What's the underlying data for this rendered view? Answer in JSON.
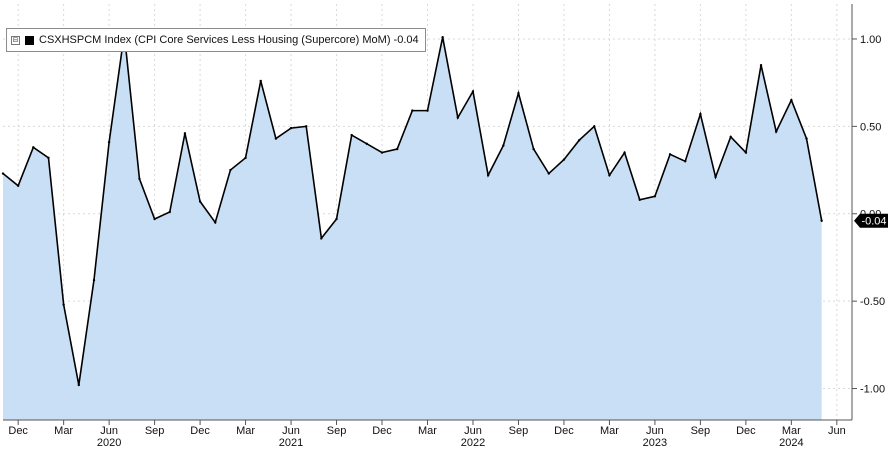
{
  "legend": {
    "toggle_symbol": "⊟",
    "series_label": "CSXHSPCM Index (CPI Core Services Less Housing (Supercore) MoM) -0.04",
    "swatch_color": "#000000"
  },
  "last_value_label": "-0.04",
  "colors": {
    "line": "#000000",
    "fill": "#c9dff5",
    "plot_bg": "#ffffff",
    "grid": "#d9d9d9",
    "axis": "#555555",
    "last_value_tag_bg": "#000000",
    "last_value_tag_text": "#ffffff"
  },
  "chart_data": {
    "type": "area",
    "series": [
      {
        "name": "CSXHSPCM Index (CPI Core Services Less Housing (Supercore) MoM)",
        "x": [
          "2019-11",
          "2019-12",
          "2020-01",
          "2020-02",
          "2020-03",
          "2020-04",
          "2020-05",
          "2020-06",
          "2020-07",
          "2020-08",
          "2020-09",
          "2020-10",
          "2020-11",
          "2020-12",
          "2021-01",
          "2021-02",
          "2021-03",
          "2021-04",
          "2021-05",
          "2021-06",
          "2021-07",
          "2021-08",
          "2021-09",
          "2021-10",
          "2021-11",
          "2021-12",
          "2022-01",
          "2022-02",
          "2022-03",
          "2022-04",
          "2022-05",
          "2022-06",
          "2022-07",
          "2022-08",
          "2022-09",
          "2022-10",
          "2022-11",
          "2022-12",
          "2023-01",
          "2023-02",
          "2023-03",
          "2023-04",
          "2023-05",
          "2023-06",
          "2023-07",
          "2023-08",
          "2023-09",
          "2023-10",
          "2023-11",
          "2023-12",
          "2024-01",
          "2024-02",
          "2024-03",
          "2024-04",
          "2024-05"
        ],
        "values": [
          0.23,
          0.16,
          0.38,
          0.32,
          -0.52,
          -0.98,
          -0.38,
          0.41,
          1.03,
          0.2,
          -0.03,
          0.01,
          0.46,
          0.07,
          -0.05,
          0.25,
          0.32,
          0.76,
          0.43,
          0.49,
          0.5,
          -0.14,
          -0.03,
          0.45,
          0.4,
          0.35,
          0.37,
          0.59,
          0.59,
          1.01,
          0.55,
          0.7,
          0.22,
          0.39,
          0.69,
          0.37,
          0.23,
          0.31,
          0.42,
          0.5,
          0.22,
          0.35,
          0.08,
          0.1,
          0.34,
          0.3,
          0.57,
          0.21,
          0.44,
          0.35,
          0.85,
          0.47,
          0.65,
          0.43,
          -0.04
        ]
      }
    ],
    "y_ticks": [
      1.0,
      0.5,
      0.0,
      -0.5,
      -1.0
    ],
    "y_tick_labels": [
      "1.00",
      "0.50",
      "0.00",
      "-0.50",
      "-1.00"
    ],
    "ylim": [
      -1.18,
      1.2
    ],
    "y_axis_side": "right",
    "x_ticks": [
      {
        "month": "2019-12",
        "label": "Dec"
      },
      {
        "month": "2020-03",
        "label": "Mar"
      },
      {
        "month": "2020-06",
        "label": "Jun"
      },
      {
        "month": "2020-09",
        "label": "Sep"
      },
      {
        "month": "2020-12",
        "label": "Dec"
      },
      {
        "month": "2021-03",
        "label": "Mar"
      },
      {
        "month": "2021-06",
        "label": "Jun"
      },
      {
        "month": "2021-09",
        "label": "Sep"
      },
      {
        "month": "2021-12",
        "label": "Dec"
      },
      {
        "month": "2022-03",
        "label": "Mar"
      },
      {
        "month": "2022-06",
        "label": "Jun"
      },
      {
        "month": "2022-09",
        "label": "Sep"
      },
      {
        "month": "2022-12",
        "label": "Dec"
      },
      {
        "month": "2023-03",
        "label": "Mar"
      },
      {
        "month": "2023-06",
        "label": "Jun"
      },
      {
        "month": "2023-09",
        "label": "Sep"
      },
      {
        "month": "2023-12",
        "label": "Dec"
      },
      {
        "month": "2024-03",
        "label": "Mar"
      },
      {
        "month": "2024-06",
        "label": "Jun"
      }
    ],
    "year_labels": [
      {
        "month": "2020-06",
        "label": "2020"
      },
      {
        "month": "2021-06",
        "label": "2021"
      },
      {
        "month": "2022-06",
        "label": "2022"
      },
      {
        "month": "2023-06",
        "label": "2023"
      },
      {
        "month": "2024-03",
        "label": "2024"
      }
    ],
    "x_range": [
      "2019-11",
      "2024-07"
    ],
    "grid": true,
    "legend_position": "top-left"
  }
}
